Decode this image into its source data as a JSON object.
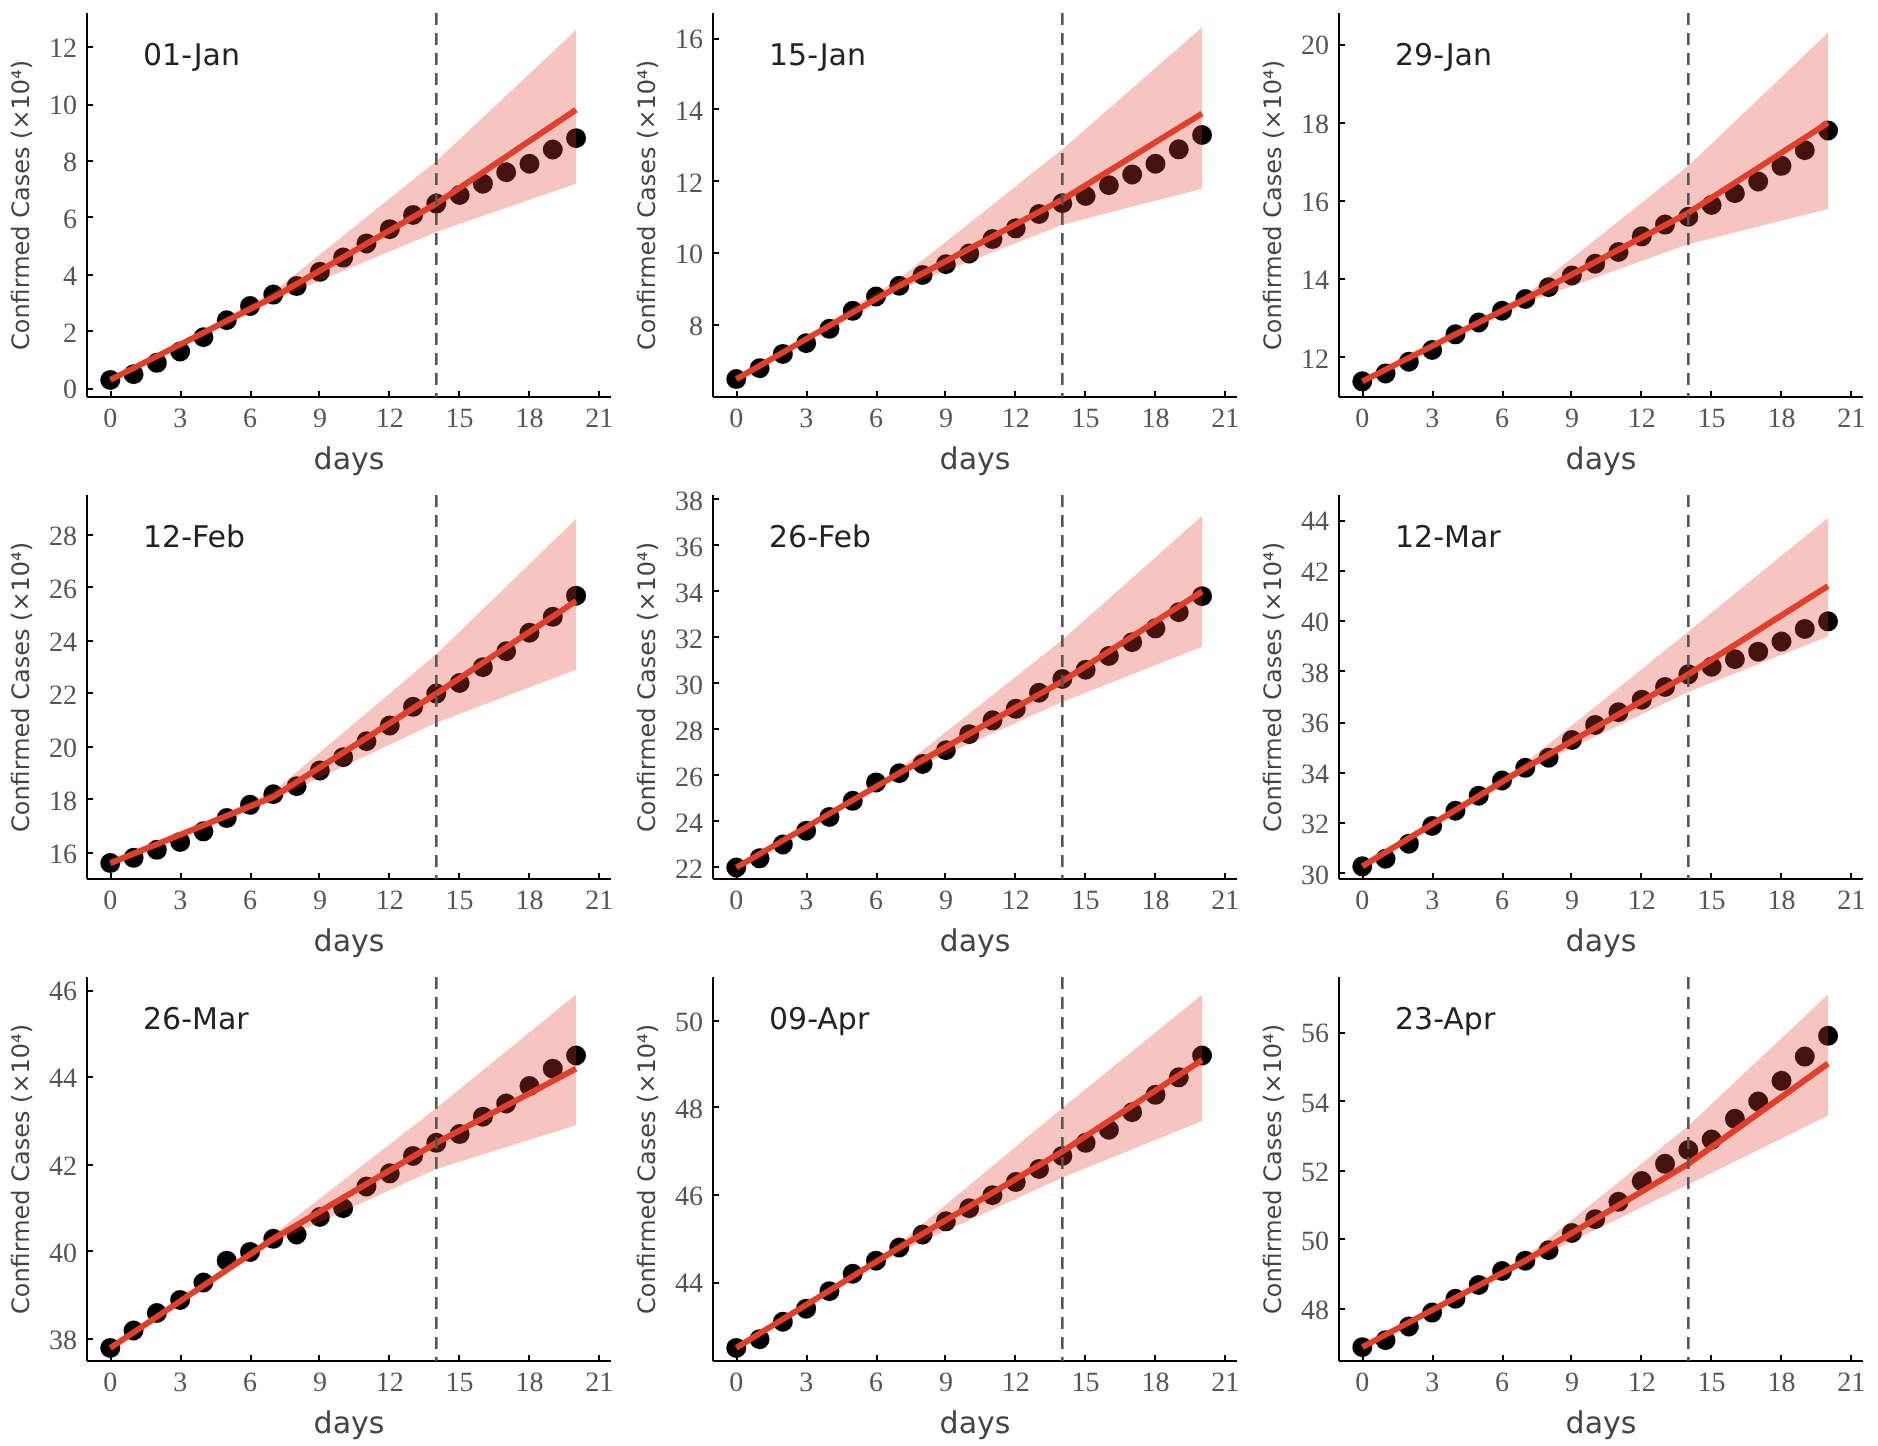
{
  "chart_data": [
    {
      "type": "scatter",
      "title": "01-Jan",
      "xlabel": "days",
      "ylabel": "Confirmed Cases (×10⁴)",
      "xlim": [
        -1,
        21.5
      ],
      "xticks": [
        0,
        3,
        6,
        9,
        12,
        15,
        18,
        21
      ],
      "ylim": [
        -0.3,
        13.2
      ],
      "yticks": [
        0,
        2,
        4,
        6,
        8,
        10,
        12
      ],
      "x": [
        0,
        1,
        2,
        3,
        4,
        5,
        6,
        7,
        8,
        9,
        10,
        11,
        12,
        13,
        14,
        15,
        16,
        17,
        18,
        19,
        20
      ],
      "series": [
        {
          "marker": "circle",
          "color": "#000000",
          "values": [
            0.3,
            0.5,
            0.9,
            1.3,
            1.8,
            2.4,
            2.9,
            3.3,
            3.6,
            4.1,
            4.6,
            5.1,
            5.6,
            6.1,
            6.5,
            6.8,
            7.2,
            7.6,
            7.9,
            8.4,
            8.8
          ]
        },
        {
          "type": "line",
          "color": "#e0402a",
          "x": [
            0,
            7,
            14,
            20
          ],
          "values": [
            0.3,
            3.2,
            6.5,
            9.8
          ],
          "lower": [
            0.3,
            3.1,
            5.5,
            7.2
          ],
          "upper": [
            0.3,
            3.4,
            8.0,
            12.6
          ]
        }
      ],
      "ref_lines": [
        {
          "axis": "x",
          "value": 14,
          "color": "#555555",
          "line_style": "dashed"
        }
      ]
    },
    {
      "type": "scatter",
      "title": "15-Jan",
      "xlabel": "days",
      "ylabel": "Confirmed Cases (×10⁴)",
      "xlim": [
        -1,
        21.5
      ],
      "xticks": [
        0,
        3,
        6,
        9,
        12,
        15,
        18,
        21
      ],
      "ylim": [
        6.0,
        16.7
      ],
      "yticks": [
        8,
        10,
        12,
        14,
        16
      ],
      "x": [
        0,
        1,
        2,
        3,
        4,
        5,
        6,
        7,
        8,
        9,
        10,
        11,
        12,
        13,
        14,
        15,
        16,
        17,
        18,
        19,
        20
      ],
      "series": [
        {
          "marker": "circle",
          "color": "#000000",
          "values": [
            6.5,
            6.8,
            7.2,
            7.5,
            7.9,
            8.4,
            8.8,
            9.1,
            9.4,
            9.7,
            10.0,
            10.4,
            10.7,
            11.1,
            11.4,
            11.6,
            11.9,
            12.2,
            12.5,
            12.9,
            13.3
          ]
        },
        {
          "type": "line",
          "color": "#e0402a",
          "x": [
            0,
            7,
            14,
            20
          ],
          "values": [
            6.5,
            9.1,
            11.5,
            13.9
          ],
          "lower": [
            6.5,
            9.0,
            10.8,
            11.8
          ],
          "upper": [
            6.5,
            9.3,
            12.9,
            16.3
          ]
        }
      ],
      "ref_lines": [
        {
          "axis": "x",
          "value": 14,
          "color": "#555555",
          "line_style": "dashed"
        }
      ]
    },
    {
      "type": "scatter",
      "title": "29-Jan",
      "xlabel": "days",
      "ylabel": "Confirmed Cases (×10⁴)",
      "xlim": [
        -1,
        21.5
      ],
      "xticks": [
        0,
        3,
        6,
        9,
        12,
        15,
        18,
        21
      ],
      "ylim": [
        11.0,
        20.8
      ],
      "yticks": [
        12,
        14,
        16,
        18,
        20
      ],
      "x": [
        0,
        1,
        2,
        3,
        4,
        5,
        6,
        7,
        8,
        9,
        10,
        11,
        12,
        13,
        14,
        15,
        16,
        17,
        18,
        19,
        20
      ],
      "series": [
        {
          "marker": "circle",
          "color": "#000000",
          "values": [
            11.4,
            11.6,
            11.9,
            12.2,
            12.6,
            12.9,
            13.2,
            13.5,
            13.8,
            14.1,
            14.4,
            14.7,
            15.1,
            15.4,
            15.6,
            15.9,
            16.2,
            16.5,
            16.9,
            17.3,
            17.8
          ]
        },
        {
          "type": "line",
          "color": "#e0402a",
          "x": [
            0,
            7,
            14,
            20
          ],
          "values": [
            11.4,
            13.5,
            15.7,
            18.0
          ],
          "lower": [
            11.4,
            13.4,
            14.9,
            15.8
          ],
          "upper": [
            11.4,
            13.6,
            16.9,
            20.3
          ]
        }
      ],
      "ref_lines": [
        {
          "axis": "x",
          "value": 14,
          "color": "#555555",
          "line_style": "dashed"
        }
      ]
    },
    {
      "type": "scatter",
      "title": "12-Feb",
      "xlabel": "days",
      "ylabel": "Confirmed Cases (×10⁴)",
      "xlim": [
        -1,
        21.5
      ],
      "xticks": [
        0,
        3,
        6,
        9,
        12,
        15,
        18,
        21
      ],
      "ylim": [
        15.0,
        29.5
      ],
      "yticks": [
        16,
        18,
        20,
        22,
        24,
        26,
        28
      ],
      "x": [
        0,
        1,
        2,
        3,
        4,
        5,
        6,
        7,
        8,
        9,
        10,
        11,
        12,
        13,
        14,
        15,
        16,
        17,
        18,
        19,
        20
      ],
      "series": [
        {
          "marker": "circle",
          "color": "#000000",
          "values": [
            15.6,
            15.8,
            16.1,
            16.4,
            16.8,
            17.3,
            17.8,
            18.2,
            18.5,
            19.1,
            19.6,
            20.2,
            20.8,
            21.5,
            22.0,
            22.4,
            23.0,
            23.6,
            24.3,
            24.9,
            25.7
          ]
        },
        {
          "type": "line",
          "color": "#e0402a",
          "x": [
            0,
            7,
            14,
            20
          ],
          "values": [
            15.6,
            18.1,
            22.0,
            25.5
          ],
          "lower": [
            15.6,
            18.0,
            20.9,
            22.9
          ],
          "upper": [
            15.6,
            18.3,
            23.5,
            28.6
          ]
        }
      ],
      "ref_lines": [
        {
          "axis": "x",
          "value": 14,
          "color": "#555555",
          "line_style": "dashed"
        }
      ]
    },
    {
      "type": "scatter",
      "title": "26-Feb",
      "xlabel": "days",
      "ylabel": "Confirmed Cases (×10⁴)",
      "xlim": [
        -1,
        21.5
      ],
      "xticks": [
        0,
        3,
        6,
        9,
        12,
        15,
        18,
        21
      ],
      "ylim": [
        21.5,
        38.2
      ],
      "yticks": [
        22,
        24,
        26,
        28,
        30,
        32,
        34,
        36,
        38
      ],
      "x": [
        0,
        1,
        2,
        3,
        4,
        5,
        6,
        7,
        8,
        9,
        10,
        11,
        12,
        13,
        14,
        15,
        16,
        17,
        18,
        19,
        20
      ],
      "series": [
        {
          "marker": "circle",
          "color": "#000000",
          "values": [
            22.0,
            22.4,
            23.0,
            23.6,
            24.2,
            24.9,
            25.7,
            26.1,
            26.5,
            27.1,
            27.8,
            28.4,
            28.9,
            29.6,
            30.2,
            30.6,
            31.2,
            31.8,
            32.4,
            33.1,
            33.8
          ]
        },
        {
          "type": "line",
          "color": "#e0402a",
          "x": [
            0,
            7,
            14,
            20
          ],
          "values": [
            22.0,
            26.1,
            30.1,
            34.0
          ],
          "lower": [
            22.0,
            26.0,
            29.2,
            31.6
          ],
          "upper": [
            22.0,
            26.3,
            31.9,
            37.3
          ]
        }
      ],
      "ref_lines": [
        {
          "axis": "x",
          "value": 14,
          "color": "#555555",
          "line_style": "dashed"
        }
      ]
    },
    {
      "type": "scatter",
      "title": "12-Mar",
      "xlabel": "days",
      "ylabel": "Confirmed Cases (×10⁴)",
      "xlim": [
        -1,
        21.5
      ],
      "xticks": [
        0,
        3,
        6,
        9,
        12,
        15,
        18,
        21
      ],
      "ylim": [
        29.8,
        45.0
      ],
      "yticks": [
        30,
        32,
        34,
        36,
        38,
        40,
        42,
        44
      ],
      "x": [
        0,
        1,
        2,
        3,
        4,
        5,
        6,
        7,
        8,
        9,
        10,
        11,
        12,
        13,
        14,
        15,
        16,
        17,
        18,
        19,
        20
      ],
      "series": [
        {
          "marker": "circle",
          "color": "#000000",
          "values": [
            30.3,
            30.6,
            31.2,
            31.9,
            32.5,
            33.1,
            33.7,
            34.2,
            34.6,
            35.3,
            35.9,
            36.4,
            36.9,
            37.4,
            37.9,
            38.2,
            38.5,
            38.8,
            39.2,
            39.7,
            40.0
          ]
        },
        {
          "type": "line",
          "color": "#e0402a",
          "x": [
            0,
            7,
            14,
            20
          ],
          "values": [
            30.3,
            34.2,
            37.9,
            41.4
          ],
          "lower": [
            30.3,
            34.1,
            37.2,
            39.4
          ],
          "upper": [
            30.3,
            34.4,
            39.6,
            44.1
          ]
        }
      ],
      "ref_lines": [
        {
          "axis": "x",
          "value": 14,
          "color": "#555555",
          "line_style": "dashed"
        }
      ]
    },
    {
      "type": "scatter",
      "title": "26-Mar",
      "xlabel": "days",
      "ylabel": "Confirmed Cases (×10⁴)",
      "xlim": [
        -1,
        21.5
      ],
      "xticks": [
        0,
        3,
        6,
        9,
        12,
        15,
        18,
        21
      ],
      "ylim": [
        37.5,
        46.3
      ],
      "yticks": [
        38,
        40,
        42,
        44,
        46
      ],
      "x": [
        0,
        1,
        2,
        3,
        4,
        5,
        6,
        7,
        8,
        9,
        10,
        11,
        12,
        13,
        14,
        15,
        16,
        17,
        18,
        19,
        20
      ],
      "series": [
        {
          "marker": "circle",
          "color": "#000000",
          "values": [
            37.8,
            38.2,
            38.6,
            38.9,
            39.3,
            39.8,
            40.0,
            40.3,
            40.4,
            40.8,
            41.0,
            41.5,
            41.8,
            42.2,
            42.5,
            42.7,
            43.1,
            43.4,
            43.8,
            44.2,
            44.5
          ]
        },
        {
          "type": "line",
          "color": "#e0402a",
          "x": [
            0,
            7,
            14,
            20
          ],
          "values": [
            37.8,
            40.3,
            42.5,
            44.2
          ],
          "lower": [
            37.8,
            40.2,
            41.9,
            42.9
          ],
          "upper": [
            37.8,
            40.4,
            43.3,
            45.9
          ]
        }
      ],
      "ref_lines": [
        {
          "axis": "x",
          "value": 14,
          "color": "#555555",
          "line_style": "dashed"
        }
      ]
    },
    {
      "type": "scatter",
      "title": "09-Apr",
      "xlabel": "days",
      "ylabel": "Confirmed Cases (×10⁴)",
      "xlim": [
        -1,
        21.5
      ],
      "xticks": [
        0,
        3,
        6,
        9,
        12,
        15,
        18,
        21
      ],
      "ylim": [
        42.2,
        51.0
      ],
      "yticks": [
        44,
        46,
        48,
        50
      ],
      "x": [
        0,
        1,
        2,
        3,
        4,
        5,
        6,
        7,
        8,
        9,
        10,
        11,
        12,
        13,
        14,
        15,
        16,
        17,
        18,
        19,
        20
      ],
      "series": [
        {
          "marker": "circle",
          "color": "#000000",
          "values": [
            42.5,
            42.7,
            43.1,
            43.4,
            43.8,
            44.2,
            44.5,
            44.8,
            45.1,
            45.4,
            45.7,
            46.0,
            46.3,
            46.6,
            46.9,
            47.2,
            47.5,
            47.9,
            48.3,
            48.7,
            49.2
          ]
        },
        {
          "type": "line",
          "color": "#e0402a",
          "x": [
            0,
            7,
            14,
            20
          ],
          "values": [
            42.5,
            44.8,
            47.0,
            49.1
          ],
          "lower": [
            42.5,
            44.7,
            46.4,
            47.7
          ],
          "upper": [
            42.5,
            44.9,
            48.0,
            50.6
          ]
        }
      ],
      "ref_lines": [
        {
          "axis": "x",
          "value": 14,
          "color": "#555555",
          "line_style": "dashed"
        }
      ]
    },
    {
      "type": "scatter",
      "title": "23-Apr",
      "xlabel": "days",
      "ylabel": "Confirmed Cases (×10⁴)",
      "xlim": [
        -1,
        21.5
      ],
      "xticks": [
        0,
        3,
        6,
        9,
        12,
        15,
        18,
        21
      ],
      "ylim": [
        46.5,
        57.6
      ],
      "yticks": [
        48,
        50,
        52,
        54,
        56
      ],
      "x": [
        0,
        1,
        2,
        3,
        4,
        5,
        6,
        7,
        8,
        9,
        10,
        11,
        12,
        13,
        14,
        15,
        16,
        17,
        18,
        19,
        20
      ],
      "series": [
        {
          "marker": "circle",
          "color": "#000000",
          "values": [
            46.9,
            47.1,
            47.5,
            47.9,
            48.3,
            48.7,
            49.1,
            49.4,
            49.7,
            50.2,
            50.6,
            51.1,
            51.7,
            52.2,
            52.6,
            52.9,
            53.5,
            54.0,
            54.6,
            55.3,
            55.9
          ]
        },
        {
          "type": "line",
          "color": "#e0402a",
          "x": [
            0,
            7,
            14,
            20
          ],
          "values": [
            46.9,
            49.4,
            52.2,
            55.1
          ],
          "lower": [
            46.9,
            49.3,
            51.6,
            53.6
          ],
          "upper": [
            46.9,
            49.5,
            53.3,
            57.1
          ]
        }
      ],
      "ref_lines": [
        {
          "axis": "x",
          "value": 14,
          "color": "#555555",
          "line_style": "dashed"
        }
      ]
    }
  ]
}
